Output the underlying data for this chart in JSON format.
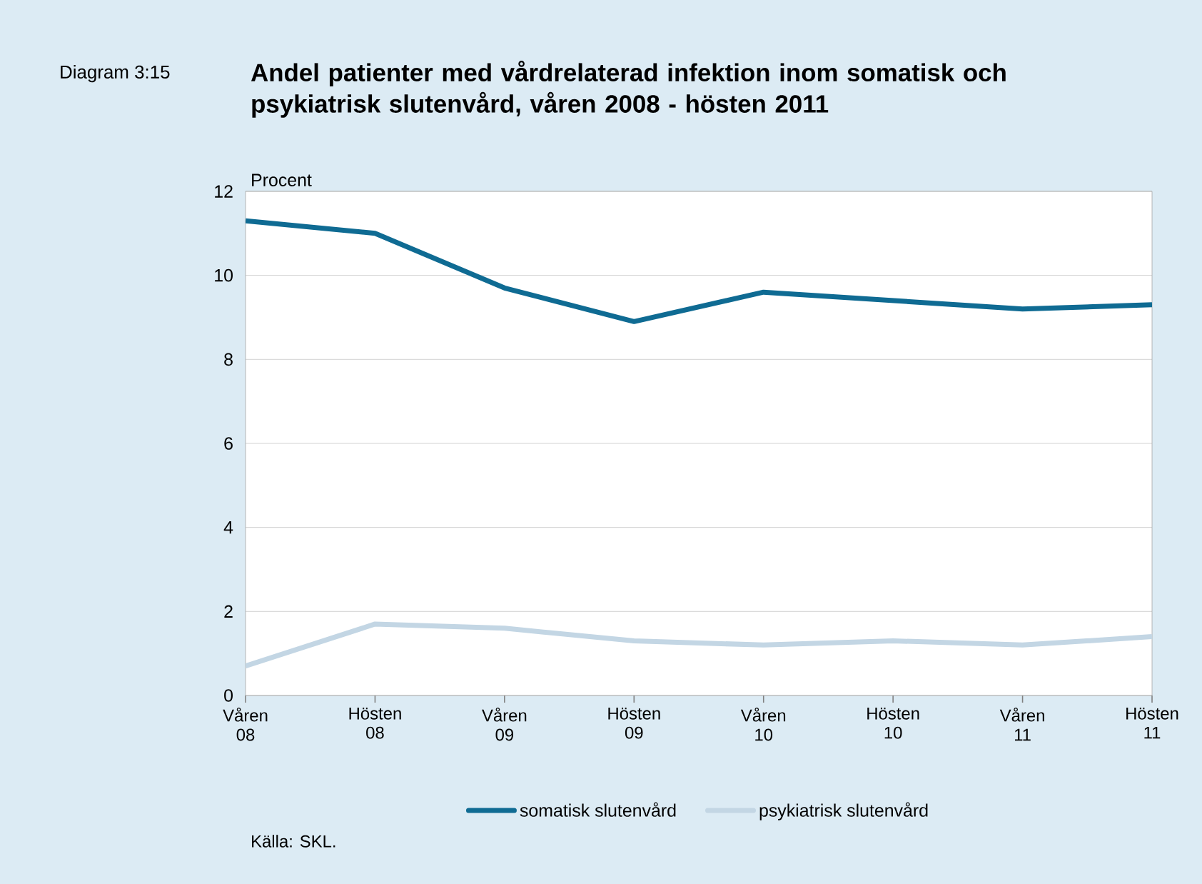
{
  "chart_data": {
    "type": "line",
    "title": "Andel patienter med vårdrelaterad infektion inom somatisk och psykiatrisk slutenvård, våren 2008 - hösten 2011",
    "ylabel": "Procent",
    "annotations": [
      "Diagram 3:15",
      "Källa: SKL."
    ],
    "categories": [
      "Våren 08",
      "Hösten 08",
      "Våren 09",
      "Hösten 09",
      "Våren 10",
      "Hösten 10",
      "Våren 11",
      "Hösten 11"
    ],
    "series": [
      {
        "name": "somatisk slutenvård",
        "color": "#0f6b93",
        "values": [
          11.3,
          11.0,
          9.7,
          8.9,
          9.6,
          9.4,
          9.2,
          9.3
        ]
      },
      {
        "name": "psykiatrisk slutenvård",
        "color": "#c3d6e4",
        "values": [
          0.7,
          1.7,
          1.6,
          1.3,
          1.2,
          1.3,
          1.2,
          1.4
        ]
      }
    ],
    "ylim": [
      0,
      12
    ],
    "yticks": [
      0,
      2,
      4,
      6,
      8,
      10,
      12
    ],
    "grid": "y",
    "legend": "bottom",
    "marker": "none",
    "line_style": "solid"
  }
}
